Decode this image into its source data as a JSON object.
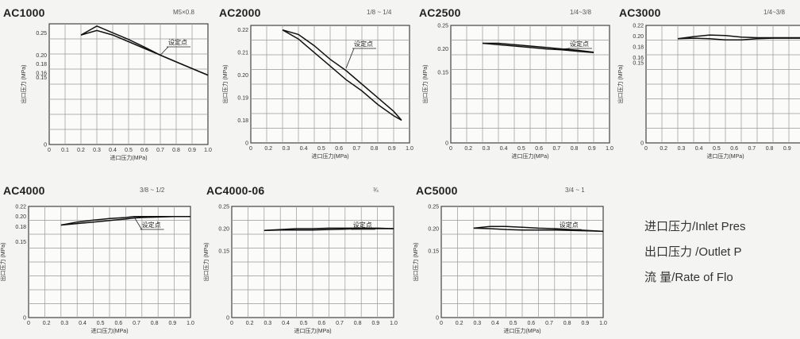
{
  "legend": [
    "进口压力/Inlet Pres",
    "出口压力 /Outlet P",
    "流    量/Rate of Flo"
  ],
  "chart_data": [
    {
      "type": "line",
      "title": "AC1000",
      "port": "M5×0.8",
      "xlabel": "进口压力(MPa)",
      "ylabel": "出口压力 (MPa)",
      "xlim": [
        0,
        1.0
      ],
      "xticks": [
        "0",
        "0.1",
        "0.2",
        "0.3",
        "0.4",
        "0.5",
        "0.6",
        "0.7",
        "0.8",
        "0.9",
        "1.0"
      ],
      "ylim": [
        0,
        0.27
      ],
      "yticks": [
        {
          "v": 0.25,
          "t": "0.25"
        },
        {
          "v": 0.2,
          "t": "0.20"
        },
        {
          "v": 0.18,
          "t": "0.18"
        },
        {
          "v": 0.16,
          "t": "0.16"
        },
        {
          "v": 0.15,
          "t": "0.15"
        },
        {
          "v": 0,
          "t": "0"
        }
      ],
      "set_point_label": "设定点",
      "set_point": [
        0.7,
        0.2
      ],
      "series": [
        {
          "x": [
            0.2,
            0.3,
            0.4,
            0.5,
            0.6,
            0.7,
            0.8,
            0.9,
            1.0
          ],
          "y": [
            0.245,
            0.265,
            0.25,
            0.235,
            0.218,
            0.2,
            0.185,
            0.17,
            0.155
          ]
        },
        {
          "x": [
            0.2,
            0.3,
            0.4,
            0.5,
            0.6,
            0.7,
            0.8,
            0.9,
            1.0
          ],
          "y": [
            0.245,
            0.255,
            0.245,
            0.23,
            0.215,
            0.2,
            0.185,
            0.17,
            0.155
          ]
        }
      ]
    },
    {
      "type": "line",
      "title": "AC2000",
      "port": "1/8 ~ 1/4",
      "xlabel": "进口压力(MPa)",
      "ylabel": "出口压力 (MPa)",
      "xlim": [
        0,
        1.0
      ],
      "xticks": [
        "0",
        "0.2",
        "0.3",
        "0.4",
        "0.5",
        "0.6",
        "0.7",
        "0.8",
        "0.9",
        "1.0"
      ],
      "ylim": [
        0.17,
        0.222
      ],
      "yticks": [
        {
          "v": 0.22,
          "t": "0.22"
        },
        {
          "v": 0.21,
          "t": "0.21"
        },
        {
          "v": 0.2,
          "t": "0.20"
        },
        {
          "v": 0.19,
          "t": "0.19"
        },
        {
          "v": 0.18,
          "t": "0.18"
        },
        {
          "v": 0.17,
          "t": "0"
        }
      ],
      "set_point_label": "设定点",
      "set_point": [
        0.6,
        0.203
      ],
      "series": [
        {
          "x": [
            0.2,
            0.3,
            0.4,
            0.5,
            0.6,
            0.7,
            0.8,
            0.9,
            0.95
          ],
          "y": [
            0.22,
            0.218,
            0.213,
            0.207,
            0.202,
            0.196,
            0.19,
            0.184,
            0.18
          ]
        },
        {
          "x": [
            0.2,
            0.3,
            0.4,
            0.5,
            0.6,
            0.7,
            0.8,
            0.9,
            0.95
          ],
          "y": [
            0.22,
            0.216,
            0.21,
            0.204,
            0.198,
            0.193,
            0.187,
            0.182,
            0.18
          ]
        }
      ]
    },
    {
      "type": "line",
      "title": "AC2500",
      "port": "1/4~3/8",
      "xlabel": "进口压力(MPa)",
      "ylabel": "出口压力 (MPa)",
      "xlim": [
        0,
        1.0
      ],
      "xticks": [
        "0",
        "0.2",
        "0.3",
        "0.4",
        "0.5",
        "0.6",
        "0.7",
        "0.8",
        "0.9",
        "1.0"
      ],
      "ylim": [
        0,
        0.25
      ],
      "yticks": [
        {
          "v": 0.25,
          "t": "0.25"
        },
        {
          "v": 0.2,
          "t": "0.20"
        },
        {
          "v": 0.15,
          "t": "0.15"
        },
        {
          "v": 0,
          "t": "0"
        }
      ],
      "set_point_label": "设定点",
      "set_point": [
        0.7,
        0.2
      ],
      "series": [
        {
          "x": [
            0.2,
            0.3,
            0.4,
            0.5,
            0.6,
            0.7,
            0.8,
            0.9
          ],
          "y": [
            0.212,
            0.212,
            0.209,
            0.206,
            0.203,
            0.2,
            0.197,
            0.193
          ]
        },
        {
          "x": [
            0.2,
            0.3,
            0.4,
            0.5,
            0.6,
            0.7,
            0.8,
            0.9
          ],
          "y": [
            0.212,
            0.209,
            0.206,
            0.203,
            0.2,
            0.198,
            0.195,
            0.192
          ]
        }
      ]
    },
    {
      "type": "line",
      "title": "AC3000",
      "port": "1/4~3/8",
      "xlabel": "进口压力(MPa)",
      "ylabel": "出口压力 (MPa)",
      "xlim": [
        0,
        1.0
      ],
      "xticks": [
        "0",
        "0.2",
        "0.3",
        "0.4",
        "0.5",
        "0.6",
        "0.7",
        "0.8",
        "0.9",
        "1.0"
      ],
      "ylim": [
        0,
        0.22
      ],
      "yticks": [
        {
          "v": 0.22,
          "t": "0.22"
        },
        {
          "v": 0.2,
          "t": "0.20"
        },
        {
          "v": 0.18,
          "t": "0.18"
        },
        {
          "v": 0.16,
          "t": "0.16"
        },
        {
          "v": 0.15,
          "t": "0.15"
        },
        {
          "v": 0,
          "t": "0"
        }
      ],
      "set_point_label": "",
      "set_point": null,
      "series": [
        {
          "x": [
            0.2,
            0.3,
            0.4,
            0.5,
            0.6,
            0.7,
            0.8,
            0.9,
            1.0
          ],
          "y": [
            0.195,
            0.199,
            0.202,
            0.201,
            0.198,
            0.197,
            0.197,
            0.197,
            0.197
          ]
        },
        {
          "x": [
            0.2,
            0.3,
            0.4,
            0.5,
            0.6,
            0.7,
            0.8,
            0.9,
            1.0
          ],
          "y": [
            0.195,
            0.196,
            0.195,
            0.193,
            0.193,
            0.195,
            0.196,
            0.196,
            0.196
          ]
        }
      ]
    },
    {
      "type": "line",
      "title": "AC4000",
      "port": "3/8 ~ 1/2",
      "xlabel": "进口压力(MPa)",
      "ylabel": "出口压力 (MPa)",
      "xlim": [
        0,
        1.0
      ],
      "xticks": [
        "0",
        "0.2",
        "0.3",
        "0.4",
        "0.5",
        "0.6",
        "0.7",
        "0.8",
        "0.9",
        "1.0"
      ],
      "ylim": [
        0,
        0.22
      ],
      "yticks": [
        {
          "v": 0.22,
          "t": "0.22"
        },
        {
          "v": 0.2,
          "t": "0.20"
        },
        {
          "v": 0.18,
          "t": "0.18"
        },
        {
          "v": 0.15,
          "t": "0.15"
        },
        {
          "v": 0,
          "t": "0"
        }
      ],
      "set_point_label": "设定点",
      "set_point": [
        0.65,
        0.2
      ],
      "series": [
        {
          "x": [
            0.2,
            0.3,
            0.4,
            0.5,
            0.6,
            0.65,
            0.7,
            0.8,
            0.9,
            1.0
          ],
          "y": [
            0.183,
            0.189,
            0.193,
            0.196,
            0.198,
            0.2,
            0.2,
            0.2,
            0.2,
            0.2
          ]
        },
        {
          "x": [
            0.2,
            0.3,
            0.4,
            0.5,
            0.6,
            0.65,
            0.7,
            0.8,
            0.9,
            1.0
          ],
          "y": [
            0.183,
            0.186,
            0.189,
            0.192,
            0.195,
            0.197,
            0.198,
            0.199,
            0.2,
            0.2
          ]
        }
      ]
    },
    {
      "type": "line",
      "title": "AC4000-06",
      "port": "¾",
      "xlabel": "进口压力(MPa)",
      "ylabel": "出口压力 (MPa)",
      "xlim": [
        0,
        1.0
      ],
      "xticks": [
        "0",
        "0.2",
        "0.3",
        "0.4",
        "0.5",
        "0.6",
        "0.7",
        "0.8",
        "0.9",
        "1.0"
      ],
      "ylim": [
        0,
        0.25
      ],
      "yticks": [
        {
          "v": 0.25,
          "t": "0.25"
        },
        {
          "v": 0.2,
          "t": "0.20"
        },
        {
          "v": 0.15,
          "t": "0.15"
        },
        {
          "v": 0,
          "t": "0"
        }
      ],
      "set_point_label": "设定点",
      "set_point": [
        0.7,
        0.2
      ],
      "series": [
        {
          "x": [
            0.2,
            0.3,
            0.4,
            0.5,
            0.6,
            0.7,
            0.8,
            0.9,
            1.0
          ],
          "y": [
            0.196,
            0.198,
            0.2,
            0.2,
            0.201,
            0.201,
            0.201,
            0.201,
            0.2
          ]
        },
        {
          "x": [
            0.2,
            0.3,
            0.4,
            0.5,
            0.6,
            0.7,
            0.8,
            0.9,
            1.0
          ],
          "y": [
            0.196,
            0.197,
            0.197,
            0.197,
            0.198,
            0.199,
            0.2,
            0.2,
            0.2
          ]
        }
      ]
    },
    {
      "type": "line",
      "title": "AC5000",
      "port": "3/4 ~ 1",
      "xlabel": "进口压力(MPa)",
      "ylabel": "出口压力 (MPa)",
      "xlim": [
        0,
        1.0
      ],
      "xticks": [
        "0",
        "0.2",
        "0.3",
        "0.4",
        "0.5",
        "0.6",
        "0.7",
        "0.8",
        "0.9",
        "1.0"
      ],
      "ylim": [
        0,
        0.25
      ],
      "yticks": [
        {
          "v": 0.25,
          "t": "0.25"
        },
        {
          "v": 0.2,
          "t": "0.20"
        },
        {
          "v": 0.15,
          "t": "0.15"
        },
        {
          "v": 0,
          "t": "0"
        }
      ],
      "set_point_label": "设定点",
      "set_point": [
        0.68,
        0.2
      ],
      "series": [
        {
          "x": [
            0.2,
            0.3,
            0.4,
            0.5,
            0.6,
            0.7,
            0.8,
            0.9,
            1.0
          ],
          "y": [
            0.201,
            0.205,
            0.205,
            0.203,
            0.201,
            0.2,
            0.198,
            0.196,
            0.194
          ]
        },
        {
          "x": [
            0.2,
            0.3,
            0.4,
            0.5,
            0.6,
            0.7,
            0.8,
            0.9,
            1.0
          ],
          "y": [
            0.201,
            0.2,
            0.198,
            0.197,
            0.197,
            0.197,
            0.196,
            0.195,
            0.194
          ]
        }
      ]
    }
  ]
}
